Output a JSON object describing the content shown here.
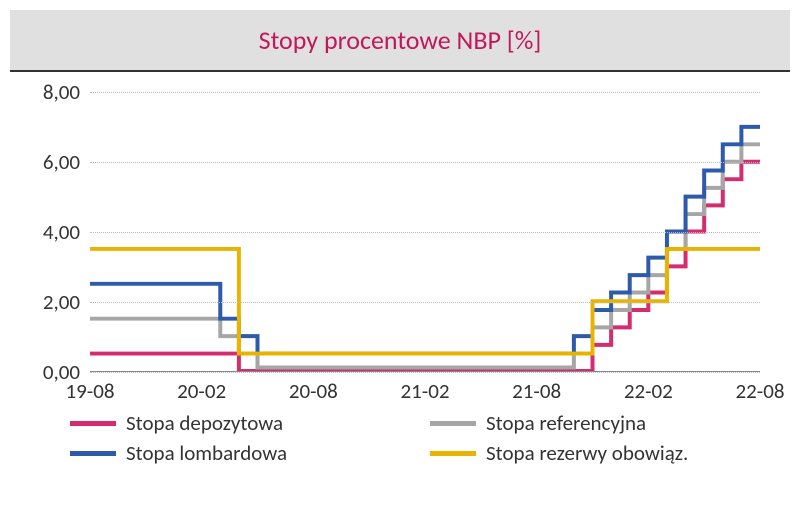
{
  "chart": {
    "type": "line",
    "title": "Stopy procentowe NBP [%]",
    "title_color": "#c2185b",
    "title_fontsize": 26,
    "title_bg": "#e0e0e0",
    "title_border_bottom": "#333333",
    "background_color": "#ffffff",
    "grid_color": "#bbbbbb",
    "axis_color": "#888888",
    "label_fontsize": 21,
    "ylim": [
      0,
      8
    ],
    "ytick_step": 2,
    "ytick_labels": [
      "0,00",
      "2,00",
      "4,00",
      "6,00",
      "8,00"
    ],
    "x_categories": [
      "19-08",
      "19-09",
      "19-10",
      "19-11",
      "19-12",
      "20-01",
      "20-02",
      "20-03",
      "20-04",
      "20-05",
      "20-06",
      "20-07",
      "20-08",
      "20-09",
      "20-10",
      "20-11",
      "20-12",
      "21-01",
      "21-02",
      "21-03",
      "21-04",
      "21-05",
      "21-06",
      "21-07",
      "21-08",
      "21-09",
      "21-10",
      "21-11",
      "21-12",
      "22-01",
      "22-02",
      "22-03",
      "22-04",
      "22-05",
      "22-06",
      "22-07",
      "22-08"
    ],
    "x_tick_indices": [
      0,
      6,
      12,
      18,
      24,
      30,
      36
    ],
    "x_tick_labels": [
      "19-08",
      "20-02",
      "20-08",
      "21-02",
      "21-08",
      "22-02",
      "22-08"
    ],
    "line_width": 4,
    "series": [
      {
        "name": "Stopa depozytowa",
        "color": "#d52b6f",
        "values": [
          0.5,
          0.5,
          0.5,
          0.5,
          0.5,
          0.5,
          0.5,
          0.5,
          0.0,
          0.0,
          0.0,
          0.0,
          0.0,
          0.0,
          0.0,
          0.0,
          0.0,
          0.0,
          0.0,
          0.0,
          0.0,
          0.0,
          0.0,
          0.0,
          0.0,
          0.0,
          0.0,
          0.75,
          1.25,
          1.75,
          2.25,
          3.0,
          4.0,
          4.75,
          5.5,
          6.0,
          6.0
        ]
      },
      {
        "name": "Stopa referencyjna",
        "color": "#a6a6a6",
        "values": [
          1.5,
          1.5,
          1.5,
          1.5,
          1.5,
          1.5,
          1.5,
          1.0,
          0.5,
          0.1,
          0.1,
          0.1,
          0.1,
          0.1,
          0.1,
          0.1,
          0.1,
          0.1,
          0.1,
          0.1,
          0.1,
          0.1,
          0.1,
          0.1,
          0.1,
          0.1,
          0.5,
          1.25,
          1.75,
          2.25,
          2.75,
          3.5,
          4.5,
          5.25,
          6.0,
          6.5,
          6.5
        ]
      },
      {
        "name": "Stopa lombardowa",
        "color": "#2e5aac",
        "values": [
          2.5,
          2.5,
          2.5,
          2.5,
          2.5,
          2.5,
          2.5,
          1.5,
          1.0,
          0.5,
          0.5,
          0.5,
          0.5,
          0.5,
          0.5,
          0.5,
          0.5,
          0.5,
          0.5,
          0.5,
          0.5,
          0.5,
          0.5,
          0.5,
          0.5,
          0.5,
          1.0,
          1.75,
          2.25,
          2.75,
          3.25,
          4.0,
          5.0,
          5.75,
          6.5,
          7.0,
          7.0
        ]
      },
      {
        "name": "Stopa rezerwy obowiąz.",
        "color": "#e8b400",
        "values": [
          3.5,
          3.5,
          3.5,
          3.5,
          3.5,
          3.5,
          3.5,
          3.5,
          0.5,
          0.5,
          0.5,
          0.5,
          0.5,
          0.5,
          0.5,
          0.5,
          0.5,
          0.5,
          0.5,
          0.5,
          0.5,
          0.5,
          0.5,
          0.5,
          0.5,
          0.5,
          0.5,
          2.0,
          2.0,
          2.0,
          2.0,
          3.5,
          3.5,
          3.5,
          3.5,
          3.5,
          3.5
        ]
      }
    ],
    "legend": {
      "position": "bottom",
      "columns": 2,
      "items_order": [
        0,
        1,
        2,
        3
      ]
    }
  }
}
